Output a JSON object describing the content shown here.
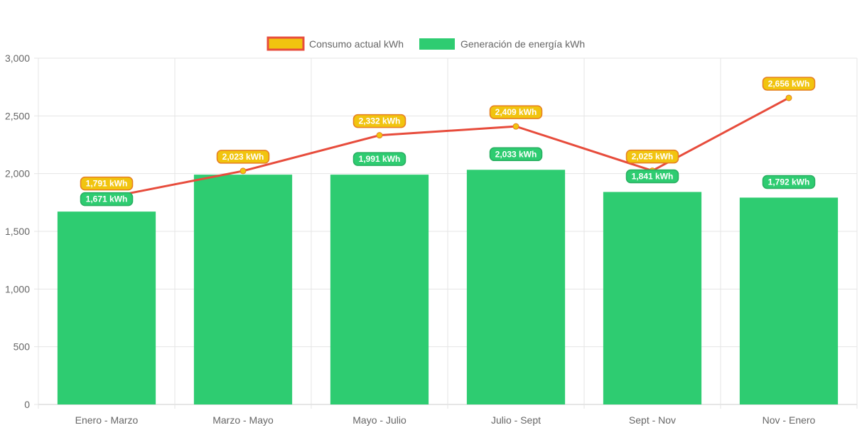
{
  "chart_data": {
    "type": "bar",
    "categories": [
      "Enero - Marzo",
      "Marzo - Mayo",
      "Mayo - Julio",
      "Julio - Sept",
      "Sept - Nov",
      "Nov - Enero"
    ],
    "series": [
      {
        "name": "Consumo actual kWh",
        "type": "line",
        "values": [
          1791,
          2023,
          2332,
          2409,
          2025,
          2656
        ],
        "labels": [
          "1,791 kWh",
          "2,023 kWh",
          "2,332 kWh",
          "2,409 kWh",
          "2,025 kWh",
          "2,656 kWh"
        ],
        "color": "#e74c3c",
        "fill": "#f1c40f",
        "label_border": "#e67e22"
      },
      {
        "name": "Generación de energía kWh",
        "type": "bar",
        "values": [
          1671,
          1991,
          1991,
          2033,
          1841,
          1792
        ],
        "labels": [
          "1,671 kWh",
          "",
          "1,991 kWh",
          "2,033 kWh",
          "1,841 kWh",
          "1,792 kWh"
        ],
        "color": "#2ecc71",
        "label_border": "#27ae60"
      }
    ],
    "y_ticks": [
      "0",
      "500",
      "1,000",
      "1,500",
      "2,000",
      "2,500",
      "3,000"
    ],
    "ylim": [
      0,
      3000
    ],
    "grid": true,
    "legend": "top-center"
  }
}
